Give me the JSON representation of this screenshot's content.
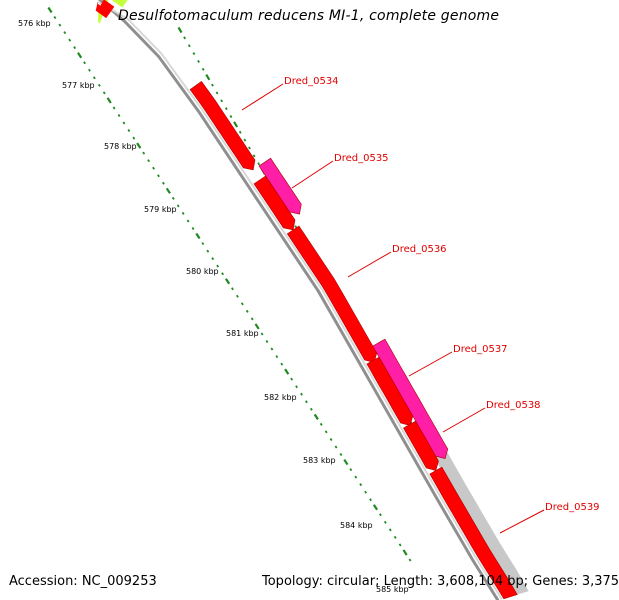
{
  "title": "Desulfotomaculum reducens MI-1, complete genome",
  "accession": "Accession: NC_009253",
  "summary": "Topology: circular; Length: 3,608,104 bp; Genes: 3,375",
  "colors": {
    "backbone": "#8f8f8f",
    "gene_red": "#ff0000",
    "gene_magenta": "#ff1fa6",
    "gene_gray": "#c8c8c8",
    "gene_lime": "#c6ff3a",
    "tick_green": "#1f8a1f",
    "label_red": "#e00000"
  },
  "ruler_labels": [
    {
      "label": "576 kbp",
      "pos": 576
    },
    {
      "label": "577 kbp",
      "pos": 577
    },
    {
      "label": "578 kbp",
      "pos": 578
    },
    {
      "label": "579 kbp",
      "pos": 579
    },
    {
      "label": "580 kbp",
      "pos": 580
    },
    {
      "label": "581 kbp",
      "pos": 581
    },
    {
      "label": "582 kbp",
      "pos": 582
    },
    {
      "label": "583 kbp",
      "pos": 583
    },
    {
      "label": "584 kbp",
      "pos": 584
    },
    {
      "label": "585 kbp",
      "pos": 585
    }
  ],
  "gene_labels": [
    {
      "name": "Dred_0534"
    },
    {
      "name": "Dred_0535"
    },
    {
      "name": "Dred_0536"
    },
    {
      "name": "Dred_0537"
    },
    {
      "name": "Dred_0538"
    },
    {
      "name": "Dred_0539"
    }
  ]
}
